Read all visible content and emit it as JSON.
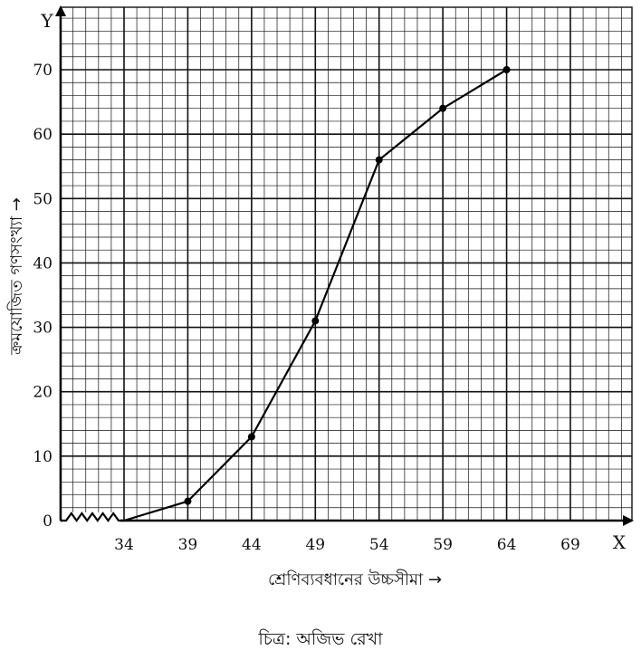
{
  "chart_data": {
    "type": "line",
    "x": [
      34,
      39,
      44,
      49,
      54,
      59,
      64
    ],
    "series": [
      {
        "values": [
          0,
          3,
          13,
          31,
          56,
          64,
          70
        ]
      }
    ],
    "x_ticks": [
      "34",
      "39",
      "44",
      "49",
      "54",
      "59",
      "64",
      "69"
    ],
    "y_ticks": [
      "0",
      "10",
      "20",
      "30",
      "40",
      "50",
      "60",
      "70"
    ],
    "xlim": [
      29,
      71
    ],
    "ylim": [
      0,
      76
    ],
    "x_axis_letter": "X",
    "y_axis_letter": "Y",
    "xlabel": "শ্রেণিব্যবধানের উচ্চসীমা →",
    "ylabel": "ক্রমযোজিত গণসংখ্যা →",
    "caption": "চিত্র: অজিভ রেখা",
    "grid": "graph-paper",
    "axis_break": "zigzag on x-axis between origin and 34"
  }
}
